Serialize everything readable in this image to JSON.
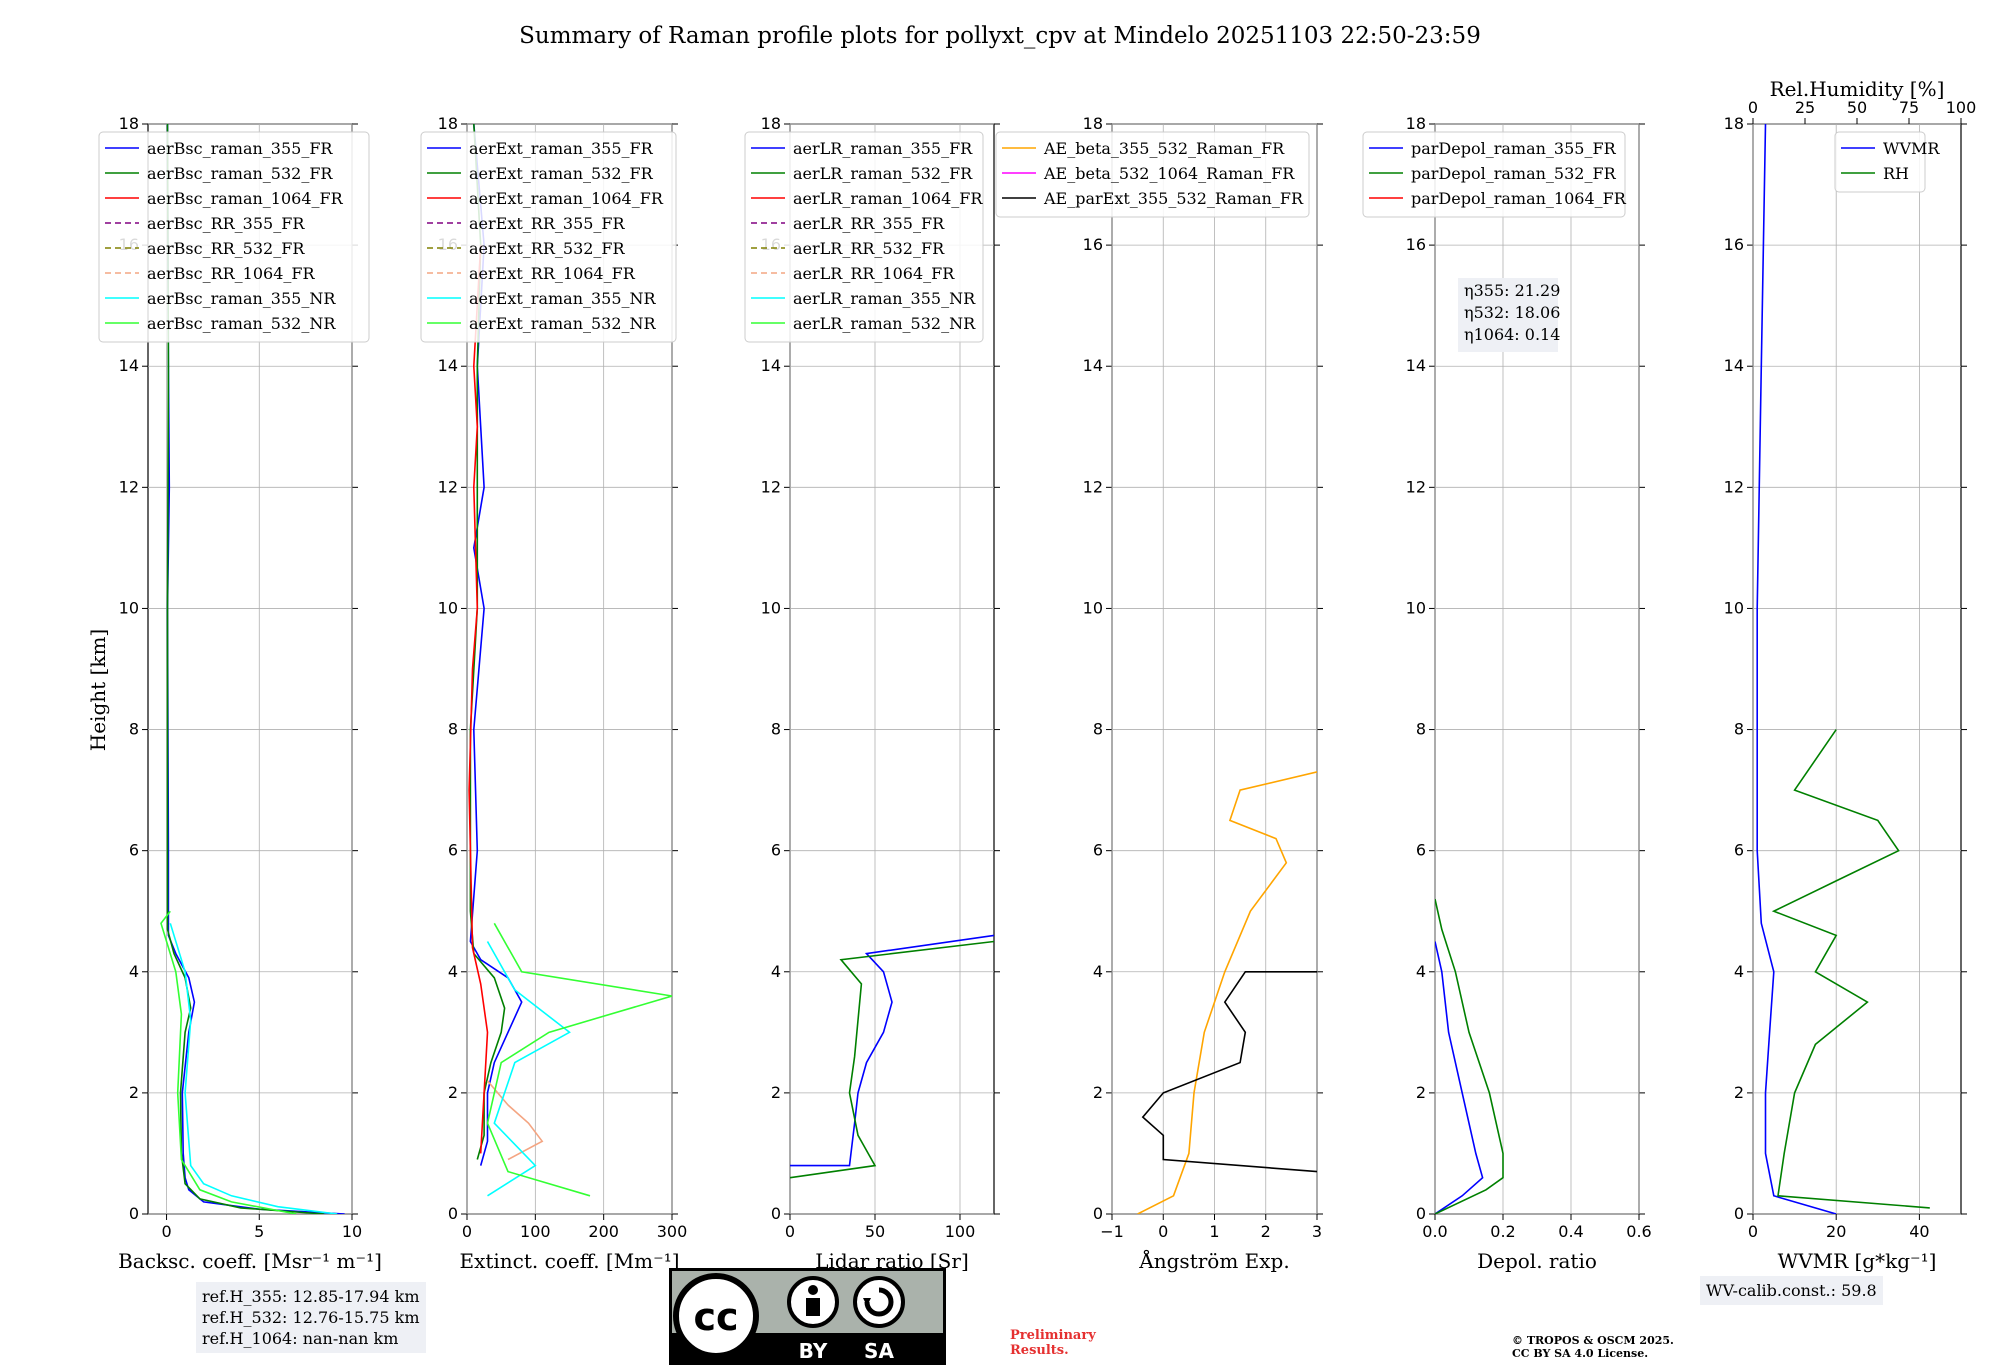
{
  "title": "Summary of Raman profile plots for pollyxt_cpv at Mindelo 20251103 22:50-23:59",
  "y_axis_label": "Height [km]",
  "y_ticks": [
    "0",
    "2",
    "4",
    "6",
    "8",
    "10",
    "12",
    "14",
    "16",
    "18"
  ],
  "chart_data": [
    {
      "type": "line",
      "id": "bsc",
      "xlabel": "Backsc. coeff. [Msr⁻¹ m⁻¹]",
      "xlim": [
        -1,
        10
      ],
      "xticks": [
        "0",
        "5",
        "10"
      ],
      "ylim": [
        0,
        18
      ],
      "legend": [
        "aerBsc_raman_355_FR",
        "aerBsc_raman_532_FR",
        "aerBsc_raman_1064_FR",
        "aerBsc_RR_355_FR",
        "aerBsc_RR_532_FR",
        "aerBsc_RR_1064_FR",
        "aerBsc_raman_355_NR",
        "aerBsc_raman_532_NR"
      ],
      "series": [
        {
          "name": "aerBsc_raman_355_FR",
          "color": "#0000ff",
          "points": [
            [
              9.6,
              0
            ],
            [
              5,
              0.08
            ],
            [
              2,
              0.2
            ],
            [
              1.2,
              0.4
            ],
            [
              1,
              0.6
            ],
            [
              0.9,
              1
            ],
            [
              0.85,
              2
            ],
            [
              1.2,
              3
            ],
            [
              1.5,
              3.5
            ],
            [
              1.2,
              3.9
            ],
            [
              0.5,
              4.3
            ],
            [
              0.1,
              4.6
            ],
            [
              0.1,
              6
            ],
            [
              0.05,
              10
            ],
            [
              0.15,
              12
            ],
            [
              0.1,
              14
            ],
            [
              0.05,
              18
            ]
          ]
        },
        {
          "name": "aerBsc_raman_532_FR",
          "color": "#008000",
          "points": [
            [
              8.5,
              0
            ],
            [
              4,
              0.1
            ],
            [
              1.8,
              0.25
            ],
            [
              1,
              0.5
            ],
            [
              0.8,
              1
            ],
            [
              0.75,
              2
            ],
            [
              1,
              3
            ],
            [
              1.3,
              3.4
            ],
            [
              1,
              3.9
            ],
            [
              0.4,
              4.3
            ],
            [
              0.05,
              4.7
            ],
            [
              0.05,
              10
            ],
            [
              0.1,
              14
            ],
            [
              0.05,
              18
            ]
          ]
        },
        {
          "name": "aerBsc_raman_355_NR",
          "color": "#00ffff",
          "points": [
            [
              9.2,
              0
            ],
            [
              6,
              0.12
            ],
            [
              3.5,
              0.3
            ],
            [
              2,
              0.5
            ],
            [
              1.3,
              0.8
            ],
            [
              1,
              2
            ],
            [
              1.3,
              3.2
            ],
            [
              1,
              4
            ],
            [
              0.2,
              4.8
            ]
          ]
        },
        {
          "name": "aerBsc_raman_532_NR",
          "color": "#33ff33",
          "points": [
            [
              7,
              0
            ],
            [
              3.5,
              0.2
            ],
            [
              1.8,
              0.4
            ],
            [
              0.8,
              0.9
            ],
            [
              0.6,
              2
            ],
            [
              0.8,
              3.3
            ],
            [
              0.5,
              4
            ],
            [
              -0.3,
              4.8
            ],
            [
              0.2,
              5
            ]
          ]
        }
      ],
      "info": [
        "ref.H_355: 12.85-17.94 km",
        "ref.H_532: 12.76-15.75 km",
        "ref.H_1064: nan-nan km"
      ]
    },
    {
      "type": "line",
      "id": "ext",
      "xlabel": "Extinct. coeff. [Mm⁻¹]",
      "xlim": [
        0,
        300
      ],
      "xticks": [
        "0",
        "100",
        "200",
        "300"
      ],
      "ylim": [
        0,
        18
      ],
      "legend": [
        "aerExt_raman_355_FR",
        "aerExt_raman_532_FR",
        "aerExt_raman_1064_FR",
        "aerExt_RR_355_FR",
        "aerExt_RR_532_FR",
        "aerExt_RR_1064_FR",
        "aerExt_raman_355_NR",
        "aerExt_raman_532_NR"
      ],
      "series": [
        {
          "name": "aerExt_raman_355_FR",
          "color": "#0000ff",
          "points": [
            [
              20,
              0.8
            ],
            [
              30,
              1.2
            ],
            [
              30,
              2
            ],
            [
              40,
              2.5
            ],
            [
              60,
              3
            ],
            [
              80,
              3.5
            ],
            [
              60,
              3.9
            ],
            [
              20,
              4.2
            ],
            [
              5,
              4.5
            ],
            [
              15,
              6
            ],
            [
              10,
              8
            ],
            [
              25,
              10
            ],
            [
              10,
              11
            ],
            [
              25,
              12
            ],
            [
              20,
              13
            ],
            [
              15,
              14
            ],
            [
              25,
              16
            ],
            [
              10,
              18
            ]
          ]
        },
        {
          "name": "aerExt_raman_532_FR",
          "color": "#008000",
          "points": [
            [
              15,
              0.9
            ],
            [
              25,
              1.3
            ],
            [
              25,
              2
            ],
            [
              35,
              2.5
            ],
            [
              50,
              3
            ],
            [
              55,
              3.4
            ],
            [
              40,
              3.9
            ],
            [
              10,
              4.3
            ],
            [
              5,
              5
            ],
            [
              5,
              8
            ],
            [
              15,
              10
            ],
            [
              15,
              14
            ],
            [
              20,
              16
            ],
            [
              10,
              18
            ]
          ]
        },
        {
          "name": "aerExt_raman_1064_FR",
          "color": "#ff0000",
          "points": [
            [
              20,
              1
            ],
            [
              25,
              2
            ],
            [
              30,
              3
            ],
            [
              20,
              3.8
            ],
            [
              8,
              4.4
            ],
            [
              3,
              7
            ],
            [
              8,
              9
            ],
            [
              15,
              10
            ],
            [
              10,
              12
            ],
            [
              15,
              13
            ],
            [
              10,
              14
            ],
            [
              20,
              16
            ]
          ]
        },
        {
          "name": "aerExt_RR_1064_FR",
          "color": "#f4a582",
          "points": [
            [
              60,
              0.9
            ],
            [
              110,
              1.2
            ],
            [
              90,
              1.5
            ],
            [
              60,
              1.8
            ],
            [
              30,
              2.2
            ]
          ]
        },
        {
          "name": "aerExt_raman_355_NR",
          "color": "#00ffff",
          "points": [
            [
              30,
              0.3
            ],
            [
              100,
              0.8
            ],
            [
              40,
              1.5
            ],
            [
              70,
              2.5
            ],
            [
              150,
              3
            ],
            [
              70,
              3.7
            ],
            [
              30,
              4.5
            ]
          ]
        },
        {
          "name": "aerExt_raman_532_NR",
          "color": "#33ff33",
          "points": [
            [
              180,
              0.3
            ],
            [
              60,
              0.7
            ],
            [
              30,
              1.5
            ],
            [
              50,
              2.5
            ],
            [
              120,
              3
            ],
            [
              300,
              3.6
            ],
            [
              80,
              4
            ],
            [
              40,
              4.8
            ]
          ]
        }
      ]
    },
    {
      "type": "line",
      "id": "lr",
      "xlabel": "Lidar ratio [Sr]",
      "xlim": [
        0,
        120
      ],
      "xticks": [
        "0",
        "50",
        "100"
      ],
      "ylim": [
        0,
        18
      ],
      "legend": [
        "aerLR_raman_355_FR",
        "aerLR_raman_532_FR",
        "aerLR_raman_1064_FR",
        "aerLR_RR_355_FR",
        "aerLR_RR_532_FR",
        "aerLR_RR_1064_FR",
        "aerLR_raman_355_NR",
        "aerLR_raman_532_NR"
      ],
      "series": [
        {
          "name": "aerLR_raman_355_FR",
          "color": "#0000ff",
          "points": [
            [
              0,
              0.8
            ],
            [
              35,
              0.8
            ],
            [
              38,
              1.5
            ],
            [
              40,
              2
            ],
            [
              45,
              2.5
            ],
            [
              55,
              3
            ],
            [
              60,
              3.5
            ],
            [
              55,
              4
            ],
            [
              45,
              4.3
            ],
            [
              120,
              4.6
            ]
          ]
        },
        {
          "name": "aerLR_raman_532_FR",
          "color": "#008000",
          "points": [
            [
              0,
              0.6
            ],
            [
              50,
              0.8
            ],
            [
              40,
              1.3
            ],
            [
              35,
              2
            ],
            [
              38,
              2.6
            ],
            [
              40,
              3.2
            ],
            [
              42,
              3.8
            ],
            [
              30,
              4.2
            ],
            [
              120,
              4.5
            ]
          ]
        }
      ]
    },
    {
      "type": "line",
      "id": "ae",
      "xlabel": "Ångström Exp.",
      "xlim": [
        -1,
        3
      ],
      "xticks": [
        "−1",
        "0",
        "1",
        "2",
        "3"
      ],
      "ylim": [
        0,
        18
      ],
      "legend": [
        "AE_beta_355_532_Raman_FR",
        "AE_beta_532_1064_Raman_FR",
        "AE_parExt_355_532_Raman_FR"
      ],
      "series": [
        {
          "name": "AE_beta_355_532_Raman_FR",
          "color": "#ffa500",
          "points": [
            [
              -0.5,
              0
            ],
            [
              0.2,
              0.3
            ],
            [
              0.5,
              1
            ],
            [
              0.6,
              2
            ],
            [
              0.8,
              3
            ],
            [
              1.2,
              4
            ],
            [
              1.7,
              5
            ],
            [
              2.4,
              5.8
            ],
            [
              2.2,
              6.2
            ],
            [
              1.3,
              6.5
            ],
            [
              1.5,
              7
            ],
            [
              3,
              7.3
            ]
          ]
        },
        {
          "name": "AE_parExt_355_532_Raman_FR",
          "color": "#000000",
          "points": [
            [
              3,
              0.7
            ],
            [
              0,
              0.9
            ],
            [
              0,
              1.3
            ],
            [
              -0.4,
              1.6
            ],
            [
              0,
              2
            ],
            [
              1.5,
              2.5
            ],
            [
              1.6,
              3
            ],
            [
              1.2,
              3.5
            ],
            [
              1.6,
              4
            ],
            [
              3,
              4
            ]
          ]
        }
      ]
    },
    {
      "type": "line",
      "id": "depol",
      "xlabel": "Depol. ratio",
      "xlim": [
        0,
        0.6
      ],
      "xticks": [
        "0.0",
        "0.2",
        "0.4",
        "0.6"
      ],
      "ylim": [
        0,
        18
      ],
      "legend": [
        "parDepol_raman_355_FR",
        "parDepol_raman_532_FR",
        "parDepol_raman_1064_FR"
      ],
      "series": [
        {
          "name": "parDepol_raman_355_FR",
          "color": "#0000ff",
          "points": [
            [
              0,
              0
            ],
            [
              0.08,
              0.3
            ],
            [
              0.14,
              0.6
            ],
            [
              0.12,
              1
            ],
            [
              0.08,
              2
            ],
            [
              0.04,
              3
            ],
            [
              0.02,
              4
            ],
            [
              0,
              4.5
            ]
          ]
        },
        {
          "name": "parDepol_raman_532_FR",
          "color": "#008000",
          "points": [
            [
              0,
              0
            ],
            [
              0.15,
              0.4
            ],
            [
              0.2,
              0.6
            ],
            [
              0.2,
              1
            ],
            [
              0.16,
              2
            ],
            [
              0.1,
              3
            ],
            [
              0.06,
              4
            ],
            [
              0.02,
              4.7
            ],
            [
              0,
              5.2
            ]
          ]
        }
      ],
      "info": [
        "η355: 21.29",
        "η532: 18.06",
        "η1064: 0.14"
      ]
    },
    {
      "type": "line",
      "id": "wv",
      "xlabel": "WVMR [g*kg⁻¹]",
      "top_xlabel": "Rel.Humidity [%]",
      "xlim": [
        0,
        50
      ],
      "xticks": [
        "0",
        "20",
        "40"
      ],
      "top_xticks": [
        "0",
        "25",
        "50",
        "75",
        "100"
      ],
      "ylim": [
        0,
        18
      ],
      "legend": [
        "WVMR",
        "RH"
      ],
      "series": [
        {
          "name": "WVMR",
          "color": "#0000ff",
          "points": [
            [
              20,
              0
            ],
            [
              5,
              0.3
            ],
            [
              3,
              1
            ],
            [
              3,
              2
            ],
            [
              4,
              3
            ],
            [
              5,
              4
            ],
            [
              2,
              4.8
            ],
            [
              1,
              6
            ],
            [
              1,
              10
            ],
            [
              2,
              14
            ],
            [
              3,
              18
            ]
          ]
        },
        {
          "name": "RH",
          "color": "#008000",
          "points": [
            [
              85,
              0.1
            ],
            [
              12,
              0.3
            ],
            [
              15,
              1
            ],
            [
              20,
              2
            ],
            [
              30,
              2.8
            ],
            [
              55,
              3.5
            ],
            [
              30,
              4
            ],
            [
              40,
              4.6
            ],
            [
              10,
              5
            ],
            [
              40,
              5.5
            ],
            [
              70,
              6
            ],
            [
              60,
              6.5
            ],
            [
              20,
              7
            ],
            [
              40,
              8
            ]
          ]
        }
      ],
      "info": [
        "WV-calib.const.: 59.8"
      ]
    }
  ],
  "license_text": [
    "BY",
    "SA"
  ],
  "preliminary": [
    "Preliminary",
    "Results."
  ],
  "copyright": [
    "© TROPOS & OSCM 2025.",
    "CC BY SA 4.0 License."
  ],
  "colors": {
    "blue": "#0000ff",
    "green": "#008000",
    "red": "#ff0000",
    "purple": "#800080",
    "olive": "#808000",
    "salmon": "#f4a582",
    "cyan": "#00ffff",
    "lime": "#33ff33",
    "orange": "#ffa500",
    "magenta": "#ff00ff",
    "black": "#000000"
  }
}
